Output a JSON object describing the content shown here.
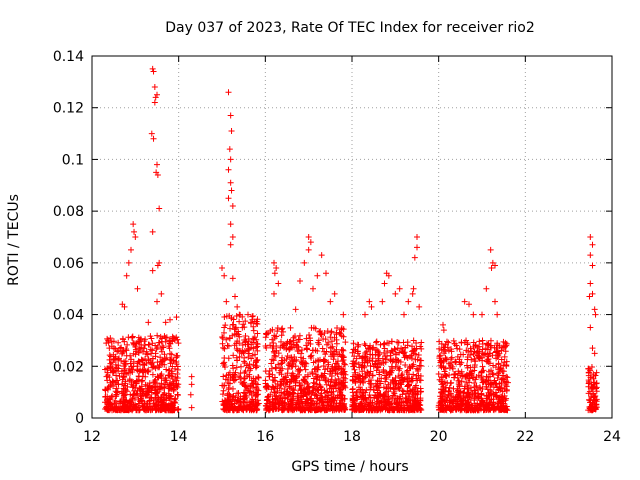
{
  "chart_data": {
    "type": "scatter",
    "title": "Day 037 of 2023, Rate Of TEC Index for receiver rio2",
    "xlabel": "GPS time / hours",
    "ylabel": "ROTI / TECUs",
    "xlim": [
      12,
      24
    ],
    "ylim": [
      0,
      0.14
    ],
    "xticks": [
      12,
      14,
      16,
      18,
      20,
      22,
      24
    ],
    "xtick_labels": [
      "12",
      "14",
      "16",
      "18",
      "20",
      "22",
      "24"
    ],
    "yticks": [
      0,
      0.02,
      0.04,
      0.06,
      0.08,
      0.1,
      0.12,
      0.14
    ],
    "ytick_labels": [
      "0",
      "0.02",
      "0.04",
      "0.06",
      "0.08",
      "0.1",
      "0.12",
      "0.14"
    ],
    "grid": true,
    "marker": "+",
    "series": [
      {
        "name": "ROTI",
        "color": "#ff0000",
        "segments": [
          {
            "x_start": 12.3,
            "x_end": 14.0,
            "y_min": 0.003,
            "y_max": 0.032
          },
          {
            "x_start": 15.0,
            "x_end": 15.85,
            "y_min": 0.003,
            "y_max": 0.04
          },
          {
            "x_start": 16.0,
            "x_end": 17.85,
            "y_min": 0.003,
            "y_max": 0.035
          },
          {
            "x_start": 18.0,
            "x_end": 19.6,
            "y_min": 0.003,
            "y_max": 0.03
          },
          {
            "x_start": 20.0,
            "x_end": 21.6,
            "y_min": 0.003,
            "y_max": 0.03
          },
          {
            "x_start": 23.45,
            "x_end": 23.65,
            "y_min": 0.003,
            "y_max": 0.02
          }
        ],
        "points": [
          [
            12.7,
            0.044
          ],
          [
            12.75,
            0.043
          ],
          [
            12.8,
            0.055
          ],
          [
            12.85,
            0.06
          ],
          [
            12.9,
            0.065
          ],
          [
            12.95,
            0.075
          ],
          [
            12.97,
            0.072
          ],
          [
            13.0,
            0.07
          ],
          [
            13.05,
            0.05
          ],
          [
            13.4,
            0.135
          ],
          [
            13.42,
            0.134
          ],
          [
            13.45,
            0.128
          ],
          [
            13.45,
            0.122
          ],
          [
            13.47,
            0.124
          ],
          [
            13.5,
            0.125
          ],
          [
            13.38,
            0.11
          ],
          [
            13.42,
            0.108
          ],
          [
            13.5,
            0.098
          ],
          [
            13.48,
            0.095
          ],
          [
            13.52,
            0.094
          ],
          [
            13.4,
            0.072
          ],
          [
            13.55,
            0.081
          ],
          [
            13.4,
            0.057
          ],
          [
            13.55,
            0.06
          ],
          [
            13.52,
            0.059
          ],
          [
            13.6,
            0.048
          ],
          [
            13.5,
            0.045
          ],
          [
            13.3,
            0.037
          ],
          [
            13.7,
            0.037
          ],
          [
            13.8,
            0.038
          ],
          [
            13.95,
            0.039
          ],
          [
            14.3,
            0.016
          ],
          [
            14.3,
            0.013
          ],
          [
            14.28,
            0.009
          ],
          [
            14.3,
            0.004
          ],
          [
            15.0,
            0.058
          ],
          [
            15.05,
            0.055
          ],
          [
            15.1,
            0.045
          ],
          [
            15.05,
            0.035
          ],
          [
            15.15,
            0.126
          ],
          [
            15.2,
            0.117
          ],
          [
            15.22,
            0.111
          ],
          [
            15.18,
            0.104
          ],
          [
            15.2,
            0.1
          ],
          [
            15.15,
            0.096
          ],
          [
            15.2,
            0.091
          ],
          [
            15.22,
            0.088
          ],
          [
            15.15,
            0.085
          ],
          [
            15.25,
            0.082
          ],
          [
            15.2,
            0.075
          ],
          [
            15.25,
            0.07
          ],
          [
            15.2,
            0.067
          ],
          [
            15.25,
            0.054
          ],
          [
            15.3,
            0.047
          ],
          [
            15.35,
            0.043
          ],
          [
            15.4,
            0.04
          ],
          [
            15.6,
            0.04
          ],
          [
            15.7,
            0.038
          ],
          [
            16.2,
            0.06
          ],
          [
            16.25,
            0.058
          ],
          [
            16.22,
            0.056
          ],
          [
            16.3,
            0.052
          ],
          [
            16.2,
            0.048
          ],
          [
            16.8,
            0.053
          ],
          [
            16.9,
            0.06
          ],
          [
            17.0,
            0.07
          ],
          [
            17.05,
            0.068
          ],
          [
            17.0,
            0.065
          ],
          [
            17.3,
            0.063
          ],
          [
            17.2,
            0.055
          ],
          [
            17.4,
            0.056
          ],
          [
            17.1,
            0.05
          ],
          [
            17.5,
            0.045
          ],
          [
            17.6,
            0.048
          ],
          [
            16.7,
            0.042
          ],
          [
            17.8,
            0.04
          ],
          [
            18.4,
            0.045
          ],
          [
            18.45,
            0.043
          ],
          [
            18.3,
            0.04
          ],
          [
            18.8,
            0.056
          ],
          [
            18.85,
            0.055
          ],
          [
            18.75,
            0.052
          ],
          [
            18.7,
            0.045
          ],
          [
            19.0,
            0.048
          ],
          [
            19.1,
            0.05
          ],
          [
            19.3,
            0.045
          ],
          [
            19.5,
            0.07
          ],
          [
            19.5,
            0.066
          ],
          [
            19.45,
            0.062
          ],
          [
            19.42,
            0.05
          ],
          [
            19.4,
            0.048
          ],
          [
            19.55,
            0.043
          ],
          [
            19.2,
            0.04
          ],
          [
            20.1,
            0.036
          ],
          [
            20.12,
            0.034
          ],
          [
            20.6,
            0.045
          ],
          [
            20.7,
            0.044
          ],
          [
            20.8,
            0.04
          ],
          [
            21.0,
            0.04
          ],
          [
            21.2,
            0.065
          ],
          [
            21.25,
            0.06
          ],
          [
            21.22,
            0.058
          ],
          [
            21.3,
            0.059
          ],
          [
            21.1,
            0.05
          ],
          [
            21.3,
            0.045
          ],
          [
            21.35,
            0.04
          ],
          [
            21.4,
            0.025
          ],
          [
            23.5,
            0.07
          ],
          [
            23.55,
            0.067
          ],
          [
            23.5,
            0.063
          ],
          [
            23.55,
            0.059
          ],
          [
            23.5,
            0.052
          ],
          [
            23.48,
            0.047
          ],
          [
            23.55,
            0.048
          ],
          [
            23.6,
            0.042
          ],
          [
            23.62,
            0.04
          ],
          [
            23.5,
            0.035
          ],
          [
            23.55,
            0.027
          ],
          [
            23.6,
            0.025
          ]
        ]
      }
    ]
  }
}
